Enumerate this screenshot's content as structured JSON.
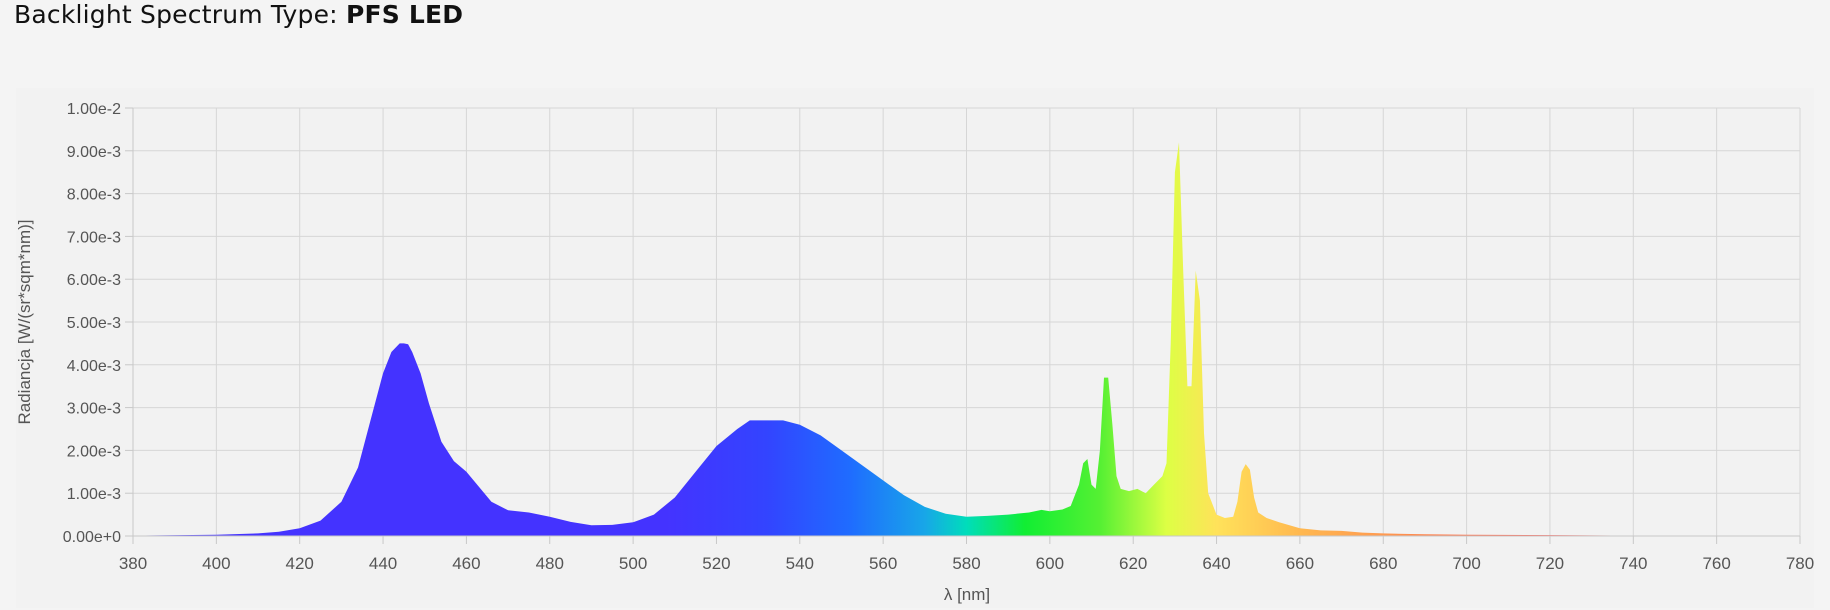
{
  "header": {
    "label": "Backlight Spectrum Type:",
    "value": "PFS LED"
  },
  "chart_data": {
    "type": "area",
    "xlabel": "λ [nm]",
    "ylabel": "Radiancja [W/(sr*sqm*nm)]",
    "xlim": [
      380,
      780
    ],
    "ylim": [
      0,
      0.01
    ],
    "grid": true,
    "x_ticks": [
      380,
      400,
      420,
      440,
      460,
      480,
      500,
      520,
      540,
      560,
      580,
      600,
      620,
      640,
      660,
      680,
      700,
      720,
      740,
      760,
      780
    ],
    "y_ticks": [
      "0.00e+0",
      "1.00e-3",
      "2.00e-3",
      "3.00e-3",
      "4.00e-3",
      "5.00e-3",
      "6.00e-3",
      "7.00e-3",
      "8.00e-3",
      "9.00e-3",
      "1.00e-2"
    ],
    "series": [
      {
        "x": [
          380,
          400,
          410,
          415,
          420,
          425,
          430,
          434,
          437,
          440,
          442,
          444,
          445,
          446,
          447,
          449,
          451,
          454,
          457,
          460,
          463,
          466,
          470,
          475,
          480,
          485,
          490,
          495,
          500,
          505,
          510,
          515,
          520,
          525,
          528,
          532,
          536,
          540,
          545,
          550,
          555,
          560,
          565,
          570,
          575,
          580,
          585,
          590,
          595,
          598,
          600,
          603,
          605,
          607,
          608,
          609,
          610,
          611,
          612,
          613,
          614,
          615,
          616,
          617,
          619,
          621,
          623,
          625,
          627,
          628,
          629,
          630,
          631,
          632,
          633,
          634,
          635,
          636,
          637,
          638,
          640,
          642,
          644,
          645,
          646,
          647,
          648,
          649,
          650,
          652,
          655,
          660,
          665,
          670,
          675,
          680,
          690,
          700,
          720,
          740,
          760,
          780
        ],
        "values": [
          1e-05,
          3e-05,
          6e-05,
          0.0001,
          0.00018,
          0.00036,
          0.0008,
          0.0016,
          0.0027,
          0.0038,
          0.0043,
          0.0045,
          0.0045,
          0.00448,
          0.0043,
          0.0038,
          0.0031,
          0.0022,
          0.00175,
          0.0015,
          0.00115,
          0.0008,
          0.0006,
          0.00055,
          0.00045,
          0.00033,
          0.00025,
          0.00026,
          0.00032,
          0.0005,
          0.0009,
          0.0015,
          0.0021,
          0.0025,
          0.0027,
          0.0027,
          0.0027,
          0.0026,
          0.00235,
          0.002,
          0.00165,
          0.0013,
          0.00095,
          0.00068,
          0.00052,
          0.00045,
          0.00047,
          0.0005,
          0.00055,
          0.00061,
          0.00058,
          0.00062,
          0.0007,
          0.0012,
          0.0017,
          0.0018,
          0.0012,
          0.0011,
          0.002,
          0.0037,
          0.0037,
          0.0026,
          0.0014,
          0.0011,
          0.00105,
          0.0011,
          0.001,
          0.0012,
          0.0014,
          0.0017,
          0.0045,
          0.0085,
          0.0092,
          0.0062,
          0.0035,
          0.0035,
          0.0062,
          0.0055,
          0.0024,
          0.001,
          0.0005,
          0.00042,
          0.00045,
          0.0008,
          0.0015,
          0.00168,
          0.00155,
          0.0009,
          0.00055,
          0.00042,
          0.00032,
          0.00018,
          0.00013,
          0.00012,
          8e-05,
          6e-05,
          4e-05,
          3e-05,
          2e-05,
          1e-05,
          1e-05,
          0.0
        ]
      }
    ],
    "colors": {
      "violet_blue": "#4433ff",
      "blue": "#2266ff",
      "cyan": "#00ccee",
      "green": "#11ee33",
      "yellow": "#eeff33",
      "orange": "#ffa050",
      "red": "#ff4444"
    }
  }
}
